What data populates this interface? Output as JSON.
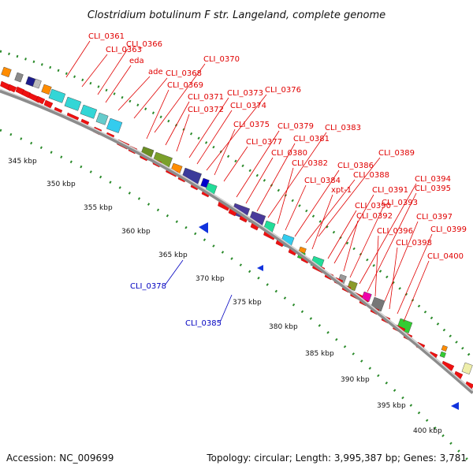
{
  "title": "Clostridium botulinum F str. Langeland, complete genome",
  "accession": "Accession: NC_009699",
  "summary": "Topology: circular; Length: 3,995,387 bp; Genes: 3,781",
  "colors": {
    "forward_label": "#e00000",
    "reverse_label": "#0000c0",
    "gene": "#ee1111",
    "ticks": "#2a8a2a",
    "backbone": "#9a9a9a"
  },
  "kbp_ticks": [
    "345 kbp",
    "350 kbp",
    "355 kbp",
    "360 kbp",
    "365 kbp",
    "370 kbp",
    "375 kbp",
    "380 kbp",
    "385 kbp",
    "390 kbp",
    "395 kbp",
    "400 kbp"
  ],
  "forward_genes": [
    "CLI_0361",
    "CLI_0363",
    "CLI_0366",
    "eda",
    "ade",
    "CLI_0368",
    "CLI_0370",
    "CLI_0369",
    "CLI_0371",
    "CLI_0372",
    "CLI_0373",
    "CLI_0374",
    "CLI_0376",
    "CLI_0375",
    "CLI_0377",
    "CLI_0379",
    "CLI_0380",
    "CLI_0381",
    "CLI_0383",
    "CLI_0382",
    "CLI_0384",
    "CLI_0386",
    "CLI_0388",
    "xpt-1",
    "CLI_0389",
    "CLI_0390",
    "CLI_0391",
    "CLI_0392",
    "CLI_0393",
    "CLI_0394",
    "CLI_0395",
    "CLI_0396",
    "CLI_0397",
    "CLI_0398",
    "CLI_0399",
    "CLI_0400"
  ],
  "reverse_genes": [
    "CLI_0378",
    "CLI_0385"
  ]
}
